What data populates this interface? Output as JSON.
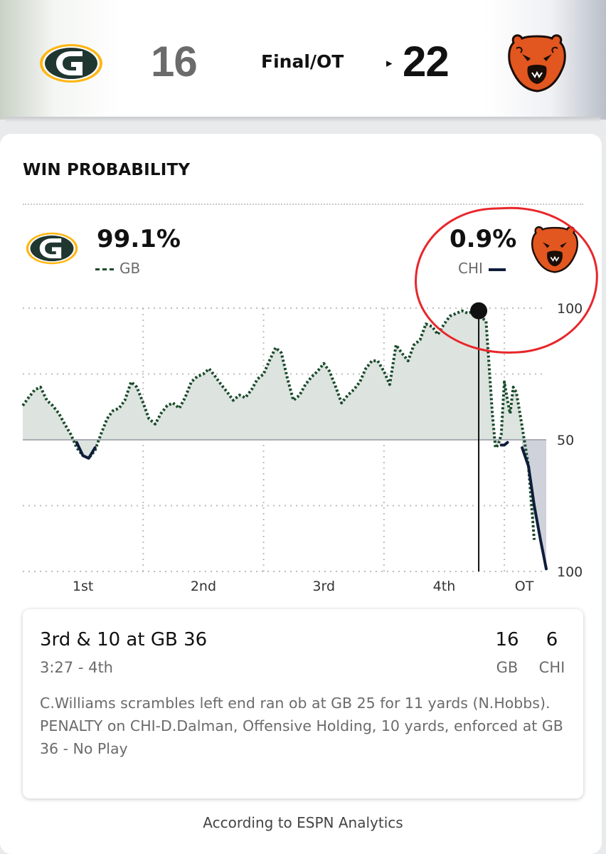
{
  "scoreboard": {
    "home": {
      "abbr": "GB",
      "score": "16",
      "logo": "packers-g-logo"
    },
    "away": {
      "abbr": "CHI",
      "score": "22",
      "logo": "bears-head-logo"
    },
    "status": "Final/OT",
    "winner_indicator": "▸"
  },
  "win_probability": {
    "title": "WIN PROBABILITY",
    "home": {
      "abbr": "GB",
      "pct": "99.1%",
      "color": "#184a2a"
    },
    "away": {
      "abbr": "CHI",
      "pct": "0.9%",
      "color": "#0e1d3a"
    },
    "annotation_color": "#e8262b"
  },
  "chart_data": {
    "type": "area",
    "title": "WIN PROBABILITY",
    "y_tick_labels": [
      "100",
      "50",
      "100"
    ],
    "x_tick_labels": [
      "1st",
      "2nd",
      "3rd",
      "4th",
      "OT"
    ],
    "grid": true,
    "fill_color": "#dde3df",
    "note": "y = GB lead in win probability (0 = 50/50, +50 = GB 100%, -50 = CHI 100%); x = game progress 0-1",
    "series": [
      {
        "name": "GB",
        "values_x": [
          0,
          0.011,
          0.023,
          0.034,
          0.046,
          0.057,
          0.069,
          0.08,
          0.092,
          0.103,
          0.115,
          0.126,
          0.138,
          0.149,
          0.161,
          0.172,
          0.184,
          0.195,
          0.207,
          0.218,
          0.23,
          0.241,
          0.253,
          0.264,
          0.276,
          0.287,
          0.299,
          0.31,
          0.322,
          0.333,
          0.345,
          0.356,
          0.368,
          0.379,
          0.391,
          0.402,
          0.414,
          0.425,
          0.437,
          0.448,
          0.46,
          0.471,
          0.483,
          0.494,
          0.506,
          0.517,
          0.529,
          0.54,
          0.552,
          0.563,
          0.575,
          0.586,
          0.598,
          0.609,
          0.621,
          0.632,
          0.644,
          0.655,
          0.667,
          0.678,
          0.69,
          0.701,
          0.713,
          0.724,
          0.736,
          0.747,
          0.759,
          0.77,
          0.782,
          0.793,
          0.805,
          0.816,
          0.828,
          0.839,
          0.851,
          0.862,
          0.874,
          0.885,
          0.897,
          0.903,
          0.908,
          0.914,
          0.92,
          0.926,
          0.931,
          0.937,
          0.943,
          0.954,
          0.966,
          0.977
        ],
        "values": [
          13,
          16,
          19,
          20,
          15,
          13,
          10,
          6,
          2,
          -3,
          -6,
          -7,
          -4,
          2,
          8,
          11,
          12,
          15,
          22,
          20,
          14,
          8,
          6,
          10,
          13,
          14,
          12,
          16,
          22,
          24,
          25,
          27,
          24,
          21,
          18,
          15,
          17,
          16,
          19,
          23,
          25,
          30,
          35,
          33,
          23,
          15,
          17,
          21,
          24,
          26,
          29,
          26,
          20,
          14,
          17,
          19,
          22,
          27,
          30,
          30,
          26,
          21,
          36,
          33,
          30,
          36,
          38,
          44,
          43,
          40,
          44,
          47,
          48,
          49,
          48,
          49,
          47,
          45,
          10,
          -3,
          -2,
          2,
          22,
          15,
          10,
          20,
          18,
          5,
          -10,
          -38
        ]
      },
      {
        "name": "CHI",
        "segments": [
          {
            "x": [
              0.103,
              0.115,
              0.126,
              0.138
            ],
            "y": [
              -1,
              -6,
              -7,
              -3
            ]
          },
          {
            "x": [
              0.914,
              0.92,
              0.926
            ],
            "y": [
              -2,
              -2,
              -1
            ]
          },
          {
            "x": [
              0.954,
              0.966,
              0.977,
              0.989,
              1.0
            ],
            "y": [
              -3,
              -10,
              -25,
              -38,
              -49
            ]
          }
        ]
      }
    ],
    "marker": {
      "x": 0.871,
      "y": 49
    }
  },
  "play": {
    "down_distance": "3rd & 10 at GB 36",
    "clock": "3:27 - 4th",
    "gb_score": "16",
    "chi_score": "6",
    "gb_abbr": "GB",
    "chi_abbr": "CHI",
    "description": "C.Williams scrambles left end ran ob at GB 25 for 11 yards (N.Hobbs). PENALTY on CHI-D.Dalman, Offensive Holding, 10 yards, enforced at GB 36 - No Play"
  },
  "footer": "According to ESPN Analytics"
}
